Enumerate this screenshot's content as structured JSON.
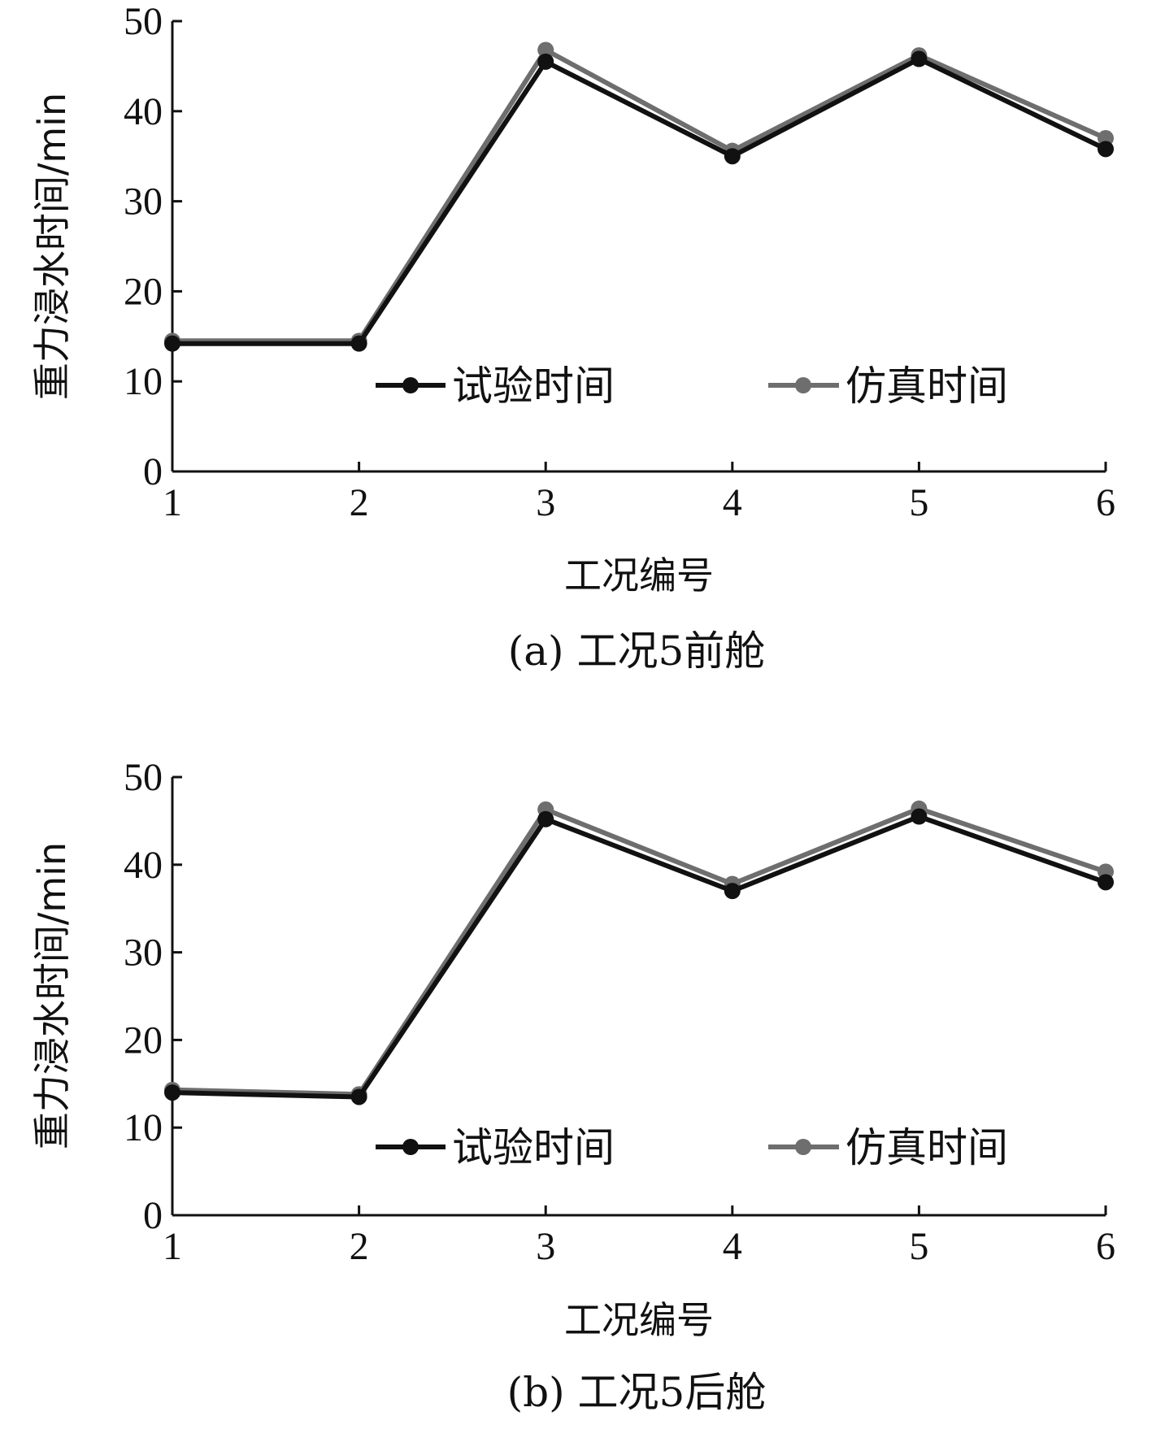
{
  "chart_data": [
    {
      "type": "line",
      "caption": "(a) 工况5前舱",
      "xlabel": "工况编号",
      "ylabel": "重力浸水时间/min",
      "x": [
        1,
        2,
        3,
        4,
        5,
        6
      ],
      "x_tick_labels": [
        "1",
        "2",
        "3",
        "4",
        "5",
        "6"
      ],
      "ylim": [
        0,
        50
      ],
      "y_ticks": [
        0,
        10,
        20,
        30,
        40,
        50
      ],
      "y_tick_labels": [
        "0",
        "10",
        "20",
        "30",
        "40",
        "50"
      ],
      "grid": false,
      "legend_position": "right",
      "series": [
        {
          "name": "试验时间",
          "color": "#111111",
          "values": [
            14.2,
            14.2,
            45.5,
            35.0,
            45.8,
            35.8
          ]
        },
        {
          "name": "仿真时间",
          "color": "#6e6e6e",
          "values": [
            14.5,
            14.5,
            46.8,
            35.6,
            46.2,
            37.0
          ]
        }
      ]
    },
    {
      "type": "line",
      "caption": "(b) 工况5后舱",
      "xlabel": "工况编号",
      "ylabel": "重力浸水时间/min",
      "x": [
        1,
        2,
        3,
        4,
        5,
        6
      ],
      "x_tick_labels": [
        "1",
        "2",
        "3",
        "4",
        "5",
        "6"
      ],
      "ylim": [
        0,
        50
      ],
      "y_ticks": [
        0,
        10,
        20,
        30,
        40,
        50
      ],
      "y_tick_labels": [
        "0",
        "10",
        "20",
        "30",
        "40",
        "50"
      ],
      "grid": false,
      "legend_position": "right",
      "series": [
        {
          "name": "试验时间",
          "color": "#111111",
          "values": [
            14.0,
            13.5,
            45.2,
            37.0,
            45.5,
            38.0
          ]
        },
        {
          "name": "仿真时间",
          "color": "#6e6e6e",
          "values": [
            14.3,
            13.8,
            46.3,
            37.8,
            46.4,
            39.2
          ]
        }
      ]
    }
  ]
}
